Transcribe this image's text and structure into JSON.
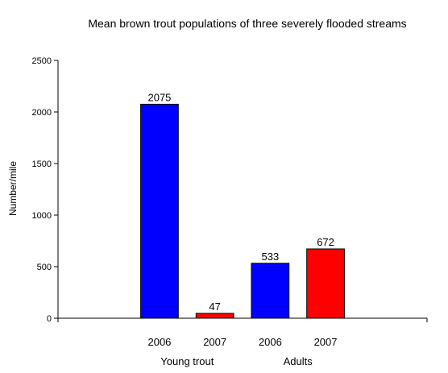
{
  "chart_data": {
    "type": "bar",
    "title": "Mean brown trout populations of three severely flooded streams",
    "ylabel": "Number/mile",
    "xlabel": "",
    "ylim": [
      0,
      2500
    ],
    "yticks": [
      0,
      500,
      1000,
      1500,
      2000,
      2500
    ],
    "grid": false,
    "bars": [
      {
        "label": "2006",
        "value": 2075,
        "color": "#0000ff"
      },
      {
        "label": "2007",
        "value": 47,
        "color": "#ff0000"
      },
      {
        "label": "2006",
        "value": 533,
        "color": "#0000ff"
      },
      {
        "label": "2007",
        "value": 672,
        "color": "#ff0000"
      }
    ],
    "groups": [
      {
        "label": "Young trout",
        "bars": [
          0,
          1
        ]
      },
      {
        "label": "Adults",
        "bars": [
          2,
          3
        ]
      }
    ]
  }
}
